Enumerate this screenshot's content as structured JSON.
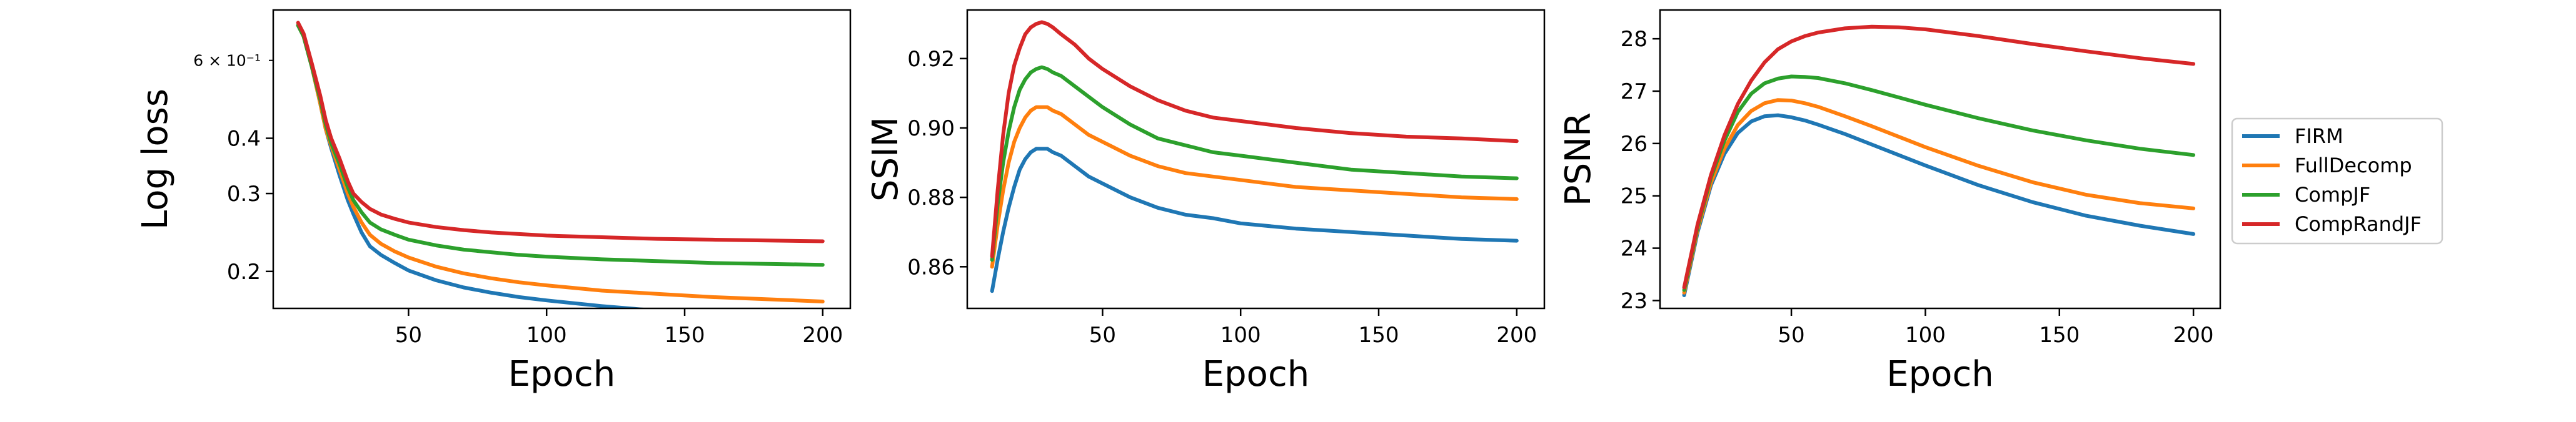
{
  "colors": {
    "FIRM": "#1f77b4",
    "FullDecomp": "#ff7f0e",
    "CompJF": "#2ca02c",
    "CompRandJF": "#d62728"
  },
  "legend": {
    "placement": "right",
    "entries": [
      "FIRM",
      "FullDecomp",
      "CompJF",
      "CompRandJF"
    ]
  },
  "chart_data": [
    {
      "type": "line",
      "ylabel": "Log loss",
      "xlabel": "Epoch",
      "xlim": [
        1,
        210
      ],
      "ylim": [
        0.165,
        0.78
      ],
      "yscale": "log",
      "grid": false,
      "xticks": [
        50,
        100,
        150,
        200
      ],
      "yticks": [
        0.2,
        0.3,
        0.4
      ],
      "ytick_labels": [
        "0.2",
        "0.3",
        "0.4"
      ],
      "yticks_minor_labeled": [
        {
          "value": 0.6,
          "label": "6 × 10⁻¹"
        }
      ],
      "x": [
        10,
        12,
        15,
        18,
        20,
        22,
        25,
        28,
        30,
        33,
        36,
        40,
        45,
        50,
        60,
        70,
        80,
        90,
        100,
        120,
        140,
        160,
        180,
        200
      ],
      "series": [
        {
          "name": "FIRM",
          "values": [
            0.72,
            0.68,
            0.58,
            0.48,
            0.42,
            0.38,
            0.33,
            0.29,
            0.27,
            0.245,
            0.228,
            0.218,
            0.209,
            0.201,
            0.191,
            0.184,
            0.179,
            0.175,
            0.172,
            0.167,
            0.163,
            0.16,
            0.157,
            0.155
          ]
        },
        {
          "name": "FullDecomp",
          "values": [
            0.72,
            0.68,
            0.58,
            0.48,
            0.42,
            0.385,
            0.34,
            0.3,
            0.28,
            0.258,
            0.242,
            0.231,
            0.222,
            0.215,
            0.205,
            0.198,
            0.193,
            0.189,
            0.186,
            0.181,
            0.178,
            0.175,
            0.173,
            0.171
          ]
        },
        {
          "name": "CompJF",
          "values": [
            0.72,
            0.68,
            0.58,
            0.49,
            0.43,
            0.39,
            0.35,
            0.31,
            0.29,
            0.272,
            0.258,
            0.249,
            0.242,
            0.236,
            0.229,
            0.224,
            0.221,
            0.218,
            0.216,
            0.213,
            0.211,
            0.209,
            0.208,
            0.207
          ]
        },
        {
          "name": "CompRandJF",
          "values": [
            0.73,
            0.69,
            0.59,
            0.5,
            0.44,
            0.4,
            0.36,
            0.32,
            0.3,
            0.287,
            0.277,
            0.269,
            0.263,
            0.258,
            0.252,
            0.248,
            0.245,
            0.243,
            0.241,
            0.239,
            0.237,
            0.236,
            0.235,
            0.234
          ]
        }
      ]
    },
    {
      "type": "line",
      "ylabel": "SSIM",
      "xlabel": "Epoch",
      "xlim": [
        1,
        210
      ],
      "ylim": [
        0.848,
        0.934
      ],
      "grid": false,
      "xticks": [
        50,
        100,
        150,
        200
      ],
      "yticks": [
        0.86,
        0.88,
        0.9,
        0.92
      ],
      "ytick_labels": [
        "0.86",
        "0.88",
        "0.90",
        "0.92"
      ],
      "x": [
        10,
        12,
        14,
        16,
        18,
        20,
        22,
        24,
        26,
        28,
        30,
        32,
        35,
        40,
        45,
        50,
        60,
        70,
        80,
        90,
        100,
        120,
        140,
        160,
        180,
        200
      ],
      "series": [
        {
          "name": "FIRM",
          "values": [
            0.853,
            0.862,
            0.87,
            0.877,
            0.883,
            0.888,
            0.891,
            0.893,
            0.894,
            0.894,
            0.894,
            0.893,
            0.892,
            0.889,
            0.886,
            0.884,
            0.88,
            0.877,
            0.875,
            0.874,
            0.8725,
            0.871,
            0.87,
            0.869,
            0.868,
            0.8675
          ]
        },
        {
          "name": "FullDecomp",
          "values": [
            0.86,
            0.872,
            0.882,
            0.89,
            0.896,
            0.9,
            0.903,
            0.905,
            0.906,
            0.906,
            0.906,
            0.905,
            0.904,
            0.901,
            0.898,
            0.896,
            0.892,
            0.889,
            0.887,
            0.886,
            0.885,
            0.883,
            0.882,
            0.881,
            0.88,
            0.8795
          ]
        },
        {
          "name": "CompJF",
          "values": [
            0.862,
            0.878,
            0.89,
            0.899,
            0.906,
            0.911,
            0.914,
            0.916,
            0.917,
            0.9175,
            0.917,
            0.916,
            0.915,
            0.912,
            0.909,
            0.906,
            0.901,
            0.897,
            0.895,
            0.893,
            0.892,
            0.89,
            0.888,
            0.887,
            0.886,
            0.8855
          ]
        },
        {
          "name": "CompRandJF",
          "values": [
            0.863,
            0.882,
            0.898,
            0.91,
            0.918,
            0.923,
            0.927,
            0.929,
            0.93,
            0.9305,
            0.93,
            0.929,
            0.927,
            0.924,
            0.92,
            0.917,
            0.912,
            0.908,
            0.905,
            0.903,
            0.902,
            0.9,
            0.8985,
            0.8975,
            0.897,
            0.8962
          ]
        }
      ]
    },
    {
      "type": "line",
      "ylabel": "PSNR",
      "xlabel": "Epoch",
      "xlim": [
        1,
        210
      ],
      "ylim": [
        22.85,
        28.55
      ],
      "grid": false,
      "xticks": [
        50,
        100,
        150,
        200
      ],
      "yticks": [
        23,
        24,
        25,
        26,
        27,
        28
      ],
      "ytick_labels": [
        "23",
        "24",
        "25",
        "26",
        "27",
        "28"
      ],
      "x": [
        10,
        15,
        20,
        25,
        30,
        35,
        40,
        45,
        50,
        55,
        60,
        70,
        80,
        90,
        100,
        120,
        140,
        160,
        180,
        200
      ],
      "series": [
        {
          "name": "FIRM",
          "values": [
            23.1,
            24.3,
            25.2,
            25.8,
            26.2,
            26.42,
            26.52,
            26.54,
            26.5,
            26.44,
            26.36,
            26.18,
            25.98,
            25.78,
            25.58,
            25.2,
            24.88,
            24.62,
            24.43,
            24.27
          ]
        },
        {
          "name": "FullDecomp",
          "values": [
            23.15,
            24.35,
            25.25,
            25.9,
            26.35,
            26.62,
            26.77,
            26.83,
            26.82,
            26.77,
            26.7,
            26.52,
            26.33,
            26.13,
            25.93,
            25.57,
            25.26,
            25.02,
            24.86,
            24.76
          ]
        },
        {
          "name": "CompJF",
          "values": [
            23.2,
            24.4,
            25.35,
            26.05,
            26.6,
            26.95,
            27.15,
            27.24,
            27.28,
            27.27,
            27.25,
            27.15,
            27.02,
            26.88,
            26.74,
            26.48,
            26.25,
            26.06,
            25.9,
            25.78
          ]
        },
        {
          "name": "CompRandJF",
          "values": [
            23.25,
            24.45,
            25.4,
            26.15,
            26.75,
            27.2,
            27.55,
            27.8,
            27.95,
            28.05,
            28.12,
            28.2,
            28.23,
            28.22,
            28.18,
            28.05,
            27.9,
            27.76,
            27.63,
            27.52
          ]
        }
      ]
    }
  ]
}
